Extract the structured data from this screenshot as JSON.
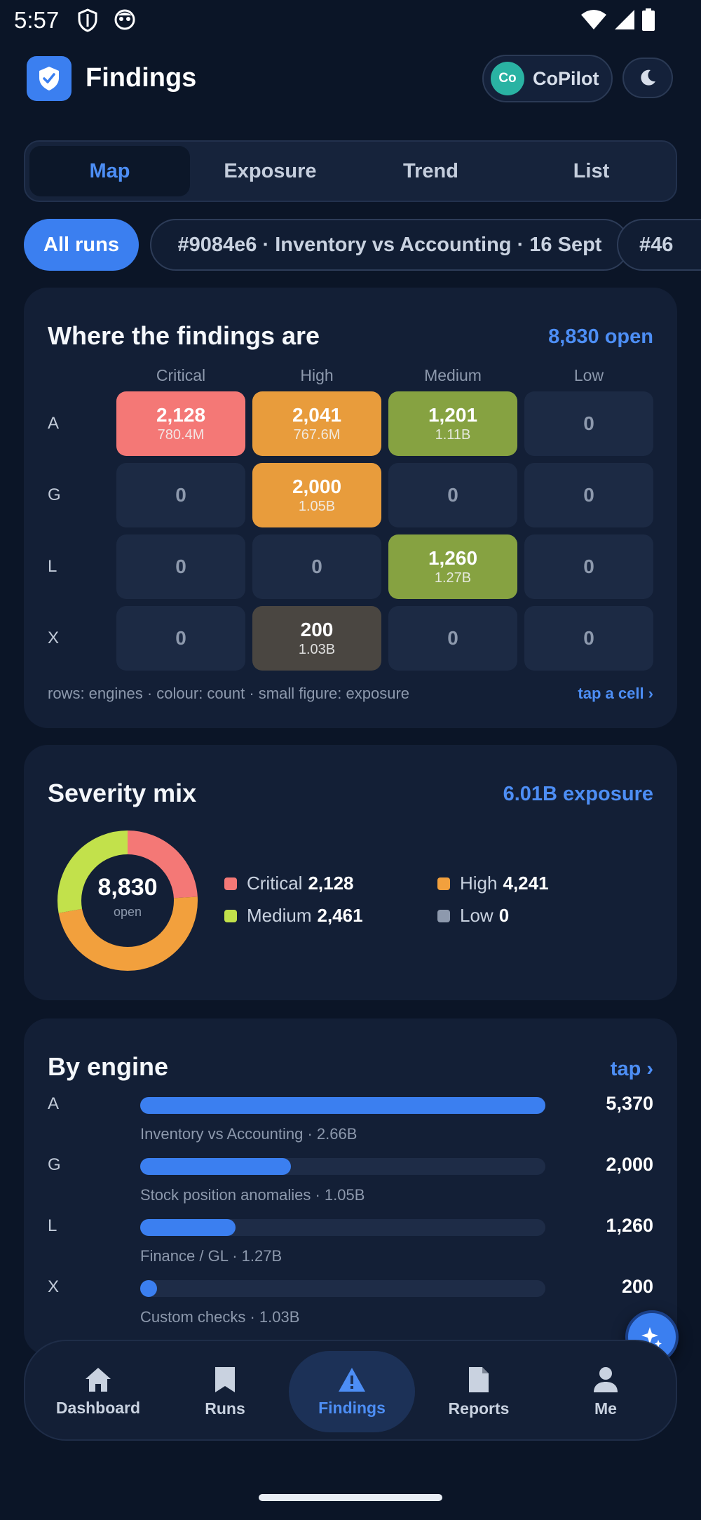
{
  "status_bar": {
    "time": "5:57"
  },
  "header": {
    "title": "Findings",
    "copilot": {
      "avatar_initials": "Co",
      "label": "CoPilot"
    }
  },
  "tabs": [
    {
      "label": "Map",
      "active": true
    },
    {
      "label": "Exposure",
      "active": false
    },
    {
      "label": "Trend",
      "active": false
    },
    {
      "label": "List",
      "active": false
    }
  ],
  "filters": {
    "all_runs": "All runs",
    "runs": [
      "#9084e6 · Inventory vs Accounting · 16 Sept",
      "#46"
    ]
  },
  "heatmap": {
    "title": "Where the findings are",
    "meta": "8,830 open",
    "columns": [
      "Critical",
      "High",
      "Medium",
      "Low"
    ],
    "rows": [
      {
        "engine": "A",
        "cells": [
          {
            "count": "2,128",
            "exposure": "780.4M",
            "color": "#f47876"
          },
          {
            "count": "2,041",
            "exposure": "767.6M",
            "color": "#e89c3c"
          },
          {
            "count": "1,201",
            "exposure": "1.11B",
            "color": "#86a241"
          },
          {
            "count": "0",
            "exposure": "",
            "color": "#1c2a44"
          }
        ]
      },
      {
        "engine": "G",
        "cells": [
          {
            "count": "0",
            "exposure": "",
            "color": "#1c2a44"
          },
          {
            "count": "2,000",
            "exposure": "1.05B",
            "color": "#e89c3c"
          },
          {
            "count": "0",
            "exposure": "",
            "color": "#1c2a44"
          },
          {
            "count": "0",
            "exposure": "",
            "color": "#1c2a44"
          }
        ]
      },
      {
        "engine": "L",
        "cells": [
          {
            "count": "0",
            "exposure": "",
            "color": "#1c2a44"
          },
          {
            "count": "0",
            "exposure": "",
            "color": "#1c2a44"
          },
          {
            "count": "1,260",
            "exposure": "1.27B",
            "color": "#86a241"
          },
          {
            "count": "0",
            "exposure": "",
            "color": "#1c2a44"
          }
        ]
      },
      {
        "engine": "X",
        "cells": [
          {
            "count": "0",
            "exposure": "",
            "color": "#1c2a44"
          },
          {
            "count": "200",
            "exposure": "1.03B",
            "color": "#4a4641"
          },
          {
            "count": "0",
            "exposure": "",
            "color": "#1c2a44"
          },
          {
            "count": "0",
            "exposure": "",
            "color": "#1c2a44"
          }
        ]
      }
    ],
    "legend": "rows: engines · colour: count · small figure: exposure",
    "tap_hint": "tap a cell ›"
  },
  "severity_mix": {
    "title": "Severity mix",
    "meta": "6.01B exposure",
    "total": "8,830",
    "total_label": "open",
    "items": [
      {
        "label": "Critical",
        "value": "2,128",
        "count": 2128,
        "color": "#f47876"
      },
      {
        "label": "High",
        "value": "4,241",
        "count": 4241,
        "color": "#f2a03d"
      },
      {
        "label": "Medium",
        "value": "2,461",
        "count": 2461,
        "color": "#c2e14b"
      },
      {
        "label": "Low",
        "value": "0",
        "count": 0,
        "color": "#8d99ad"
      }
    ]
  },
  "by_engine": {
    "title": "By engine",
    "tap_hint": "tap ›",
    "max": 5370,
    "engines": [
      {
        "label": "A",
        "count": "5,370",
        "value": 5370,
        "description": "Inventory vs Accounting · 2.66B"
      },
      {
        "label": "G",
        "count": "2,000",
        "value": 2000,
        "description": "Stock position anomalies · 1.05B"
      },
      {
        "label": "L",
        "count": "1,260",
        "value": 1260,
        "description": "Finance / GL · 1.27B"
      },
      {
        "label": "X",
        "count": "200",
        "value": 200,
        "description": "Custom checks · 1.03B"
      }
    ]
  },
  "bottom_nav": [
    {
      "label": "Dashboard",
      "icon": "home-icon",
      "active": false
    },
    {
      "label": "Runs",
      "icon": "bookmark-icon",
      "active": false
    },
    {
      "label": "Findings",
      "icon": "warning-icon",
      "active": true
    },
    {
      "label": "Reports",
      "icon": "document-icon",
      "active": false
    },
    {
      "label": "Me",
      "icon": "person-icon",
      "active": false
    }
  ]
}
